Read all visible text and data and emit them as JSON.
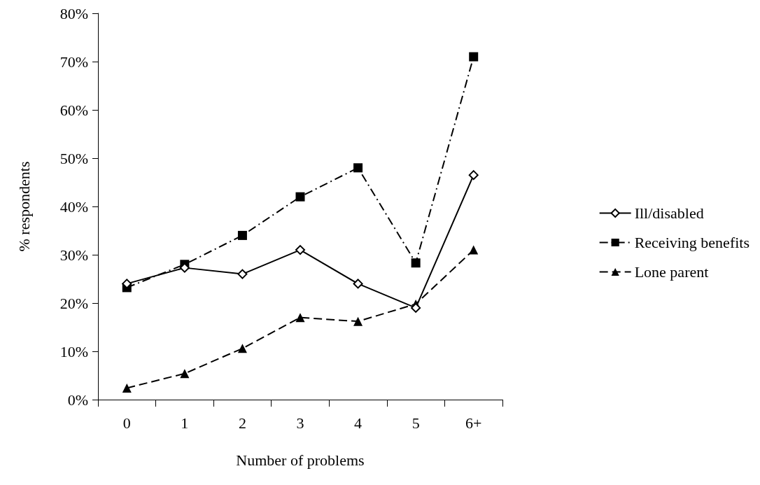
{
  "chart_data": {
    "type": "line",
    "xlabel": "Number of problems",
    "ylabel": "% respondents",
    "categories": [
      "0",
      "1",
      "2",
      "3",
      "4",
      "5",
      "6+"
    ],
    "ylim": [
      0,
      80
    ],
    "yticks": [
      {
        "value": 0,
        "label": "0%"
      },
      {
        "value": 10,
        "label": "10%"
      },
      {
        "value": 20,
        "label": "20%"
      },
      {
        "value": 30,
        "label": "30%"
      },
      {
        "value": 40,
        "label": "40%"
      },
      {
        "value": 50,
        "label": "50%"
      },
      {
        "value": 60,
        "label": "60%"
      },
      {
        "value": 70,
        "label": "70%"
      },
      {
        "value": 80,
        "label": "80%"
      }
    ],
    "grid": false,
    "legend": "right",
    "series": [
      {
        "name": "Ill/disabled",
        "color": "#000000",
        "marker": "diamond",
        "line_style": "solid",
        "values": [
          24,
          27.3,
          26,
          31,
          24,
          19,
          46.5
        ]
      },
      {
        "name": "Receiving benefits",
        "color": "#000000",
        "marker": "square",
        "line_style": "dashdot",
        "values": [
          23.2,
          28,
          34,
          42,
          48,
          28.3,
          71
        ]
      },
      {
        "name": "Lone parent",
        "color": "#000000",
        "marker": "triangle",
        "line_style": "dashed",
        "values": [
          2.4,
          5.4,
          10.6,
          17,
          16.2,
          19.8,
          31
        ]
      }
    ]
  }
}
